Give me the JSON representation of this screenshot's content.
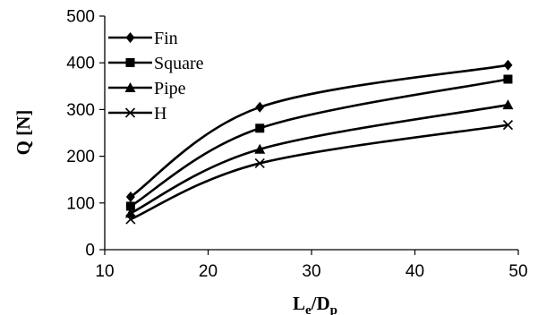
{
  "chart_data": {
    "type": "line",
    "title": "",
    "xlabel": {
      "main": "L",
      "sub1": "e",
      "mid": "/D",
      "sub2": "p"
    },
    "ylabel": "Q [N]",
    "xlim": [
      10,
      50
    ],
    "ylim": [
      0,
      500
    ],
    "xticks": [
      10,
      20,
      30,
      40,
      50
    ],
    "yticks": [
      0,
      100,
      200,
      300,
      400,
      500
    ],
    "grid": false,
    "legend_position": "top-left",
    "x": [
      12.5,
      25,
      49
    ],
    "series": [
      {
        "name": "Fin",
        "marker": "diamond",
        "values": [
          113,
          305,
          395
        ]
      },
      {
        "name": "Square",
        "marker": "square",
        "values": [
          93,
          260,
          365
        ]
      },
      {
        "name": "Pipe",
        "marker": "triangle",
        "values": [
          78,
          215,
          310
        ]
      },
      {
        "name": "H",
        "marker": "x",
        "values": [
          65,
          185,
          267
        ]
      }
    ],
    "line_color": "#000000"
  }
}
